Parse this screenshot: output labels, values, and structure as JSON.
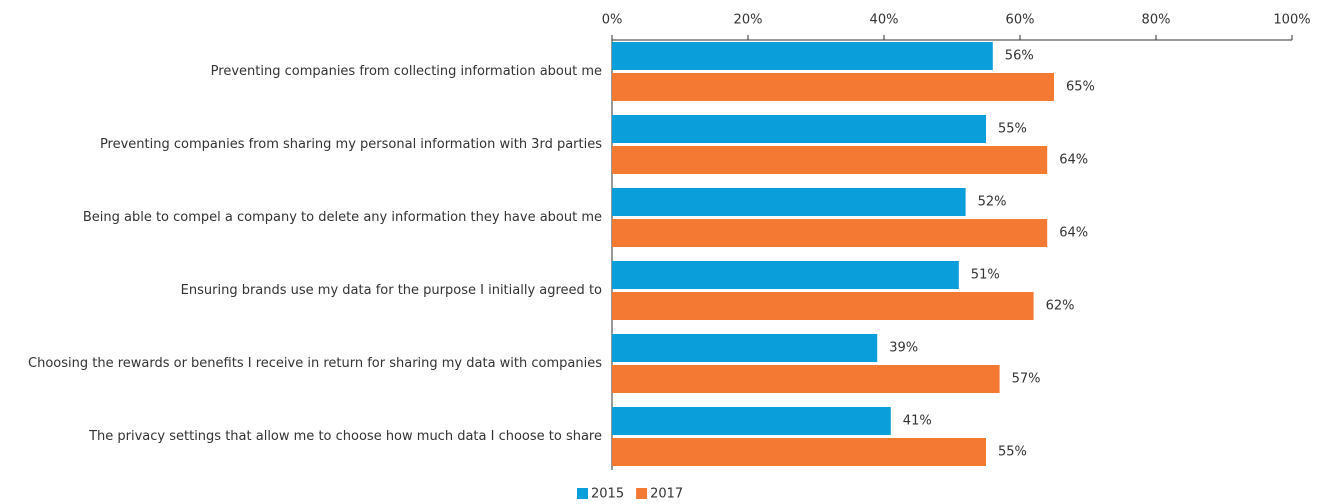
{
  "chart_data": {
    "type": "hbar",
    "categories": [
      "Preventing companies from collecting information about me",
      "Preventing companies from sharing my personal information with 3rd parties",
      "Being able to compel a company to delete any information they have about me",
      "Ensuring brands use my data for the purpose I initially agreed to",
      "Choosing the rewards or benefits I receive in return for sharing my data with companies",
      "The privacy settings that allow me to choose how much data I choose to share"
    ],
    "series": [
      {
        "name": "2015",
        "color": "#0a9fdb",
        "values": [
          56,
          55,
          52,
          51,
          39,
          41
        ],
        "value_labels": [
          "56%",
          "55%",
          "52%",
          "51%",
          "39%",
          "41%"
        ]
      },
      {
        "name": "2017",
        "color": "#f47a34",
        "values": [
          65,
          64,
          64,
          62,
          57,
          55
        ],
        "value_labels": [
          "65%",
          "64%",
          "64%",
          "62%",
          "57%",
          "55%"
        ]
      }
    ],
    "xlim": [
      0,
      100
    ],
    "xticks": [
      {
        "value": 0,
        "label": "0%"
      },
      {
        "value": 20,
        "label": "20%"
      },
      {
        "value": 40,
        "label": "40%"
      },
      {
        "value": 60,
        "label": "60%"
      },
      {
        "value": 80,
        "label": "80%"
      },
      {
        "value": 100,
        "label": "100%"
      }
    ],
    "legend": "bottom"
  }
}
